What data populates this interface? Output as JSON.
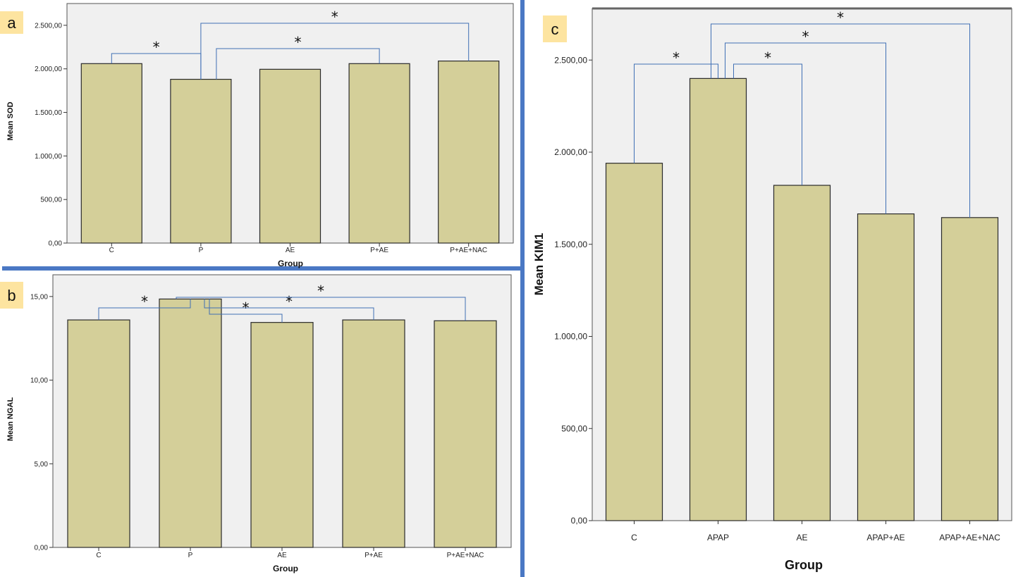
{
  "chart_data": [
    {
      "id": "a",
      "type": "bar",
      "panel_label": "a",
      "categories": [
        "C",
        "P",
        "AE",
        "P+AE",
        "P+AE+NAC"
      ],
      "values": [
        2060,
        1880,
        1995,
        2060,
        2090
      ],
      "ylabel": "Mean SOD",
      "xlabel": "Group",
      "ylim": [
        0,
        2750
      ],
      "yticks": [
        0,
        500,
        1000,
        1500,
        2000,
        2500
      ],
      "ytick_labels": [
        "0,00",
        "500,00",
        "1.000,00",
        "1.500,00",
        "2.000,00",
        "2.500,00"
      ],
      "grid": false,
      "significance": [
        {
          "from": 0,
          "to": 1,
          "label": "*"
        },
        {
          "from": 1,
          "to": 3,
          "label": "*"
        },
        {
          "from": 1,
          "to": 4,
          "label": "*"
        }
      ]
    },
    {
      "id": "b",
      "type": "bar",
      "panel_label": "b",
      "categories": [
        "C",
        "P",
        "AE",
        "P+AE",
        "P+AE+NAC"
      ],
      "values": [
        13.6,
        14.85,
        13.45,
        13.6,
        13.55
      ],
      "ylabel": "Mean NGAL",
      "xlabel": "Group",
      "ylim": [
        0,
        16.3
      ],
      "yticks": [
        0,
        5,
        10,
        15
      ],
      "ytick_labels": [
        "0,00",
        "5,00",
        "10,00",
        "15,00"
      ],
      "grid": false,
      "significance": [
        {
          "from": 0,
          "to": 1,
          "label": "*"
        },
        {
          "from": 1,
          "to": 2,
          "label": "*"
        },
        {
          "from": 1,
          "to": 3,
          "label": "*"
        },
        {
          "from": 1,
          "to": 4,
          "label": "*"
        }
      ]
    },
    {
      "id": "c",
      "type": "bar",
      "panel_label": "c",
      "categories": [
        "C",
        "APAP",
        "AE",
        "APAP+AE",
        "APAP+AE+NAC"
      ],
      "values": [
        1940,
        2400,
        1820,
        1665,
        1645
      ],
      "ylabel": "Mean KIM1",
      "xlabel": "Group",
      "ylim": [
        0,
        2780
      ],
      "yticks": [
        0,
        500,
        1000,
        1500,
        2000,
        2500
      ],
      "ytick_labels": [
        "0,00",
        "500,00",
        "1.000,00",
        "1.500,00",
        "2.000,00",
        "2.500,00"
      ],
      "grid": false,
      "significance": [
        {
          "from": 0,
          "to": 1,
          "label": "*"
        },
        {
          "from": 1,
          "to": 2,
          "label": "*"
        },
        {
          "from": 1,
          "to": 3,
          "label": "*"
        },
        {
          "from": 1,
          "to": 4,
          "label": "*"
        }
      ]
    }
  ],
  "colors": {
    "bar_fill": "#d4cf99",
    "bar_stroke": "#2a2a2a",
    "plot_bg": "#f0f0f0",
    "bracket": "#3f6fb5",
    "separator": "#4a78c4",
    "panel_label_bg": "#fde4a0"
  }
}
